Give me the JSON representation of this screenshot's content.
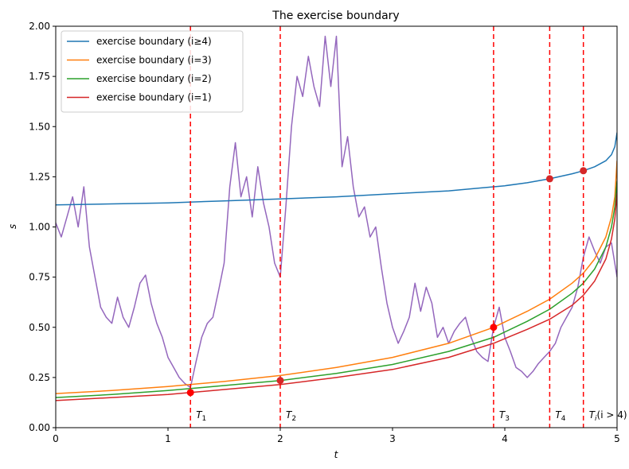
{
  "chart_data": {
    "type": "line",
    "title": "The exercise boundary",
    "xlabel": "t",
    "ylabel": "s",
    "xlim": [
      0,
      5
    ],
    "ylim": [
      0,
      2.0
    ],
    "xticks": [
      0,
      1,
      2,
      3,
      4,
      5
    ],
    "xtick_labels": [
      "0",
      "1",
      "2",
      "3",
      "4",
      "5"
    ],
    "yticks": [
      0,
      0.25,
      0.5,
      0.75,
      1.0,
      1.25,
      1.5,
      1.75,
      2.0
    ],
    "ytick_labels": [
      "0.00",
      "0.25",
      "0.50",
      "0.75",
      "1.00",
      "1.25",
      "1.50",
      "1.75",
      "2.00"
    ],
    "grid": false,
    "legend_position": "top-left",
    "series": [
      {
        "name": "exercise boundary (i ≥ 4)",
        "legend_label": "exercise boundary (i≥4)",
        "color": "#1f77b4",
        "x": [
          0,
          0.5,
          1.0,
          1.5,
          2.0,
          2.5,
          3.0,
          3.5,
          3.8,
          4.0,
          4.2,
          4.4,
          4.6,
          4.7,
          4.8,
          4.9,
          4.95,
          4.98,
          5.0
        ],
        "y": [
          1.11,
          1.115,
          1.12,
          1.13,
          1.14,
          1.15,
          1.165,
          1.18,
          1.195,
          1.205,
          1.22,
          1.24,
          1.265,
          1.28,
          1.3,
          1.33,
          1.36,
          1.4,
          1.47
        ]
      },
      {
        "name": "exercise boundary (i = 3)",
        "legend_label": "exercise boundary (i=3)",
        "color": "#ff7f0e",
        "x": [
          0,
          0.5,
          1.0,
          1.5,
          2.0,
          2.5,
          3.0,
          3.5,
          3.9,
          4.2,
          4.4,
          4.6,
          4.7,
          4.8,
          4.9,
          4.95,
          4.98,
          5.0
        ],
        "y": [
          0.17,
          0.185,
          0.205,
          0.23,
          0.26,
          0.3,
          0.35,
          0.42,
          0.5,
          0.58,
          0.64,
          0.72,
          0.77,
          0.84,
          0.95,
          1.05,
          1.15,
          1.33
        ]
      },
      {
        "name": "exercise boundary (i = 2)",
        "legend_label": "exercise boundary (i=2)",
        "color": "#2ca02c",
        "x": [
          0,
          0.5,
          1.0,
          1.5,
          2.0,
          2.5,
          3.0,
          3.5,
          3.9,
          4.2,
          4.4,
          4.6,
          4.7,
          4.8,
          4.9,
          4.95,
          4.98,
          5.0
        ],
        "y": [
          0.15,
          0.165,
          0.185,
          0.21,
          0.235,
          0.27,
          0.315,
          0.38,
          0.45,
          0.53,
          0.59,
          0.67,
          0.72,
          0.79,
          0.9,
          1.0,
          1.1,
          1.23
        ]
      },
      {
        "name": "exercise boundary (i = 1)",
        "legend_label": "exercise boundary (i=1)",
        "color": "#d62728",
        "x": [
          0,
          0.5,
          1.0,
          1.5,
          2.0,
          2.5,
          3.0,
          3.5,
          3.9,
          4.2,
          4.4,
          4.6,
          4.7,
          4.8,
          4.9,
          4.95,
          4.98,
          5.0
        ],
        "y": [
          0.135,
          0.15,
          0.165,
          0.19,
          0.215,
          0.25,
          0.29,
          0.35,
          0.42,
          0.49,
          0.54,
          0.61,
          0.66,
          0.73,
          0.84,
          0.94,
          1.04,
          1.17
        ]
      },
      {
        "name": "price path",
        "color": "#9467bd",
        "x": [
          0,
          0.05,
          0.1,
          0.15,
          0.2,
          0.25,
          0.3,
          0.35,
          0.4,
          0.45,
          0.5,
          0.55,
          0.6,
          0.65,
          0.7,
          0.75,
          0.8,
          0.85,
          0.9,
          0.95,
          1.0,
          1.05,
          1.1,
          1.15,
          1.2,
          1.25,
          1.3,
          1.35,
          1.4,
          1.45,
          1.5,
          1.55,
          1.6,
          1.65,
          1.7,
          1.75,
          1.8,
          1.85,
          1.9,
          1.95,
          2.0,
          2.05,
          2.1,
          2.15,
          2.2,
          2.25,
          2.3,
          2.35,
          2.4,
          2.45,
          2.5,
          2.55,
          2.6,
          2.65,
          2.7,
          2.75,
          2.8,
          2.85,
          2.9,
          2.95,
          3.0,
          3.05,
          3.1,
          3.15,
          3.2,
          3.25,
          3.3,
          3.35,
          3.4,
          3.45,
          3.5,
          3.55,
          3.6,
          3.65,
          3.7,
          3.75,
          3.8,
          3.85,
          3.9,
          3.95,
          4.0,
          4.05,
          4.1,
          4.15,
          4.2,
          4.25,
          4.3,
          4.35,
          4.4,
          4.45,
          4.5,
          4.55,
          4.6,
          4.65,
          4.7,
          4.75,
          4.8,
          4.85,
          4.9,
          4.95,
          5.0
        ],
        "y": [
          1.02,
          0.95,
          1.05,
          1.15,
          1.0,
          1.2,
          0.9,
          0.75,
          0.6,
          0.55,
          0.52,
          0.65,
          0.55,
          0.5,
          0.6,
          0.72,
          0.76,
          0.62,
          0.52,
          0.45,
          0.35,
          0.3,
          0.25,
          0.22,
          0.2,
          0.33,
          0.45,
          0.52,
          0.55,
          0.68,
          0.82,
          1.2,
          1.42,
          1.15,
          1.25,
          1.05,
          1.3,
          1.12,
          1.0,
          0.82,
          0.75,
          1.1,
          1.5,
          1.75,
          1.65,
          1.85,
          1.7,
          1.6,
          1.95,
          1.7,
          1.95,
          1.3,
          1.45,
          1.2,
          1.05,
          1.1,
          0.95,
          1.0,
          0.8,
          0.62,
          0.5,
          0.42,
          0.48,
          0.55,
          0.72,
          0.58,
          0.7,
          0.62,
          0.45,
          0.5,
          0.42,
          0.48,
          0.52,
          0.55,
          0.45,
          0.38,
          0.35,
          0.33,
          0.5,
          0.6,
          0.45,
          0.38,
          0.3,
          0.28,
          0.25,
          0.28,
          0.32,
          0.35,
          0.38,
          0.42,
          0.5,
          0.55,
          0.6,
          0.7,
          0.85,
          0.95,
          0.88,
          0.82,
          0.9,
          0.92,
          0.75
        ]
      }
    ],
    "vlines": [
      {
        "x": 1.2,
        "label": "T_1",
        "label_main": "T",
        "label_sub": "1",
        "label_suffix": "",
        "color": "#ff0000"
      },
      {
        "x": 2.0,
        "label": "T_2",
        "label_main": "T",
        "label_sub": "2",
        "label_suffix": "",
        "color": "#ff0000"
      },
      {
        "x": 3.9,
        "label": "T_3",
        "label_main": "T",
        "label_sub": "3",
        "label_suffix": "",
        "color": "#ff0000"
      },
      {
        "x": 4.4,
        "label": "T_4",
        "label_main": "T",
        "label_sub": "4",
        "label_suffix": "",
        "color": "#ff0000"
      },
      {
        "x": 4.7,
        "label": "T_i(i > 4)",
        "label_main": "T",
        "label_sub": "i",
        "label_suffix": "(i > 4)",
        "color": "#ff0000"
      }
    ],
    "exercise_points": [
      {
        "x": 1.2,
        "y": 0.175,
        "color": "#ff0000"
      },
      {
        "x": 2.0,
        "y": 0.235,
        "color": "#d62728"
      },
      {
        "x": 3.9,
        "y": 0.5,
        "color": "#ff0000"
      },
      {
        "x": 4.4,
        "y": 1.24,
        "color": "#d62728"
      },
      {
        "x": 4.7,
        "y": 1.28,
        "color": "#d62728"
      }
    ]
  }
}
